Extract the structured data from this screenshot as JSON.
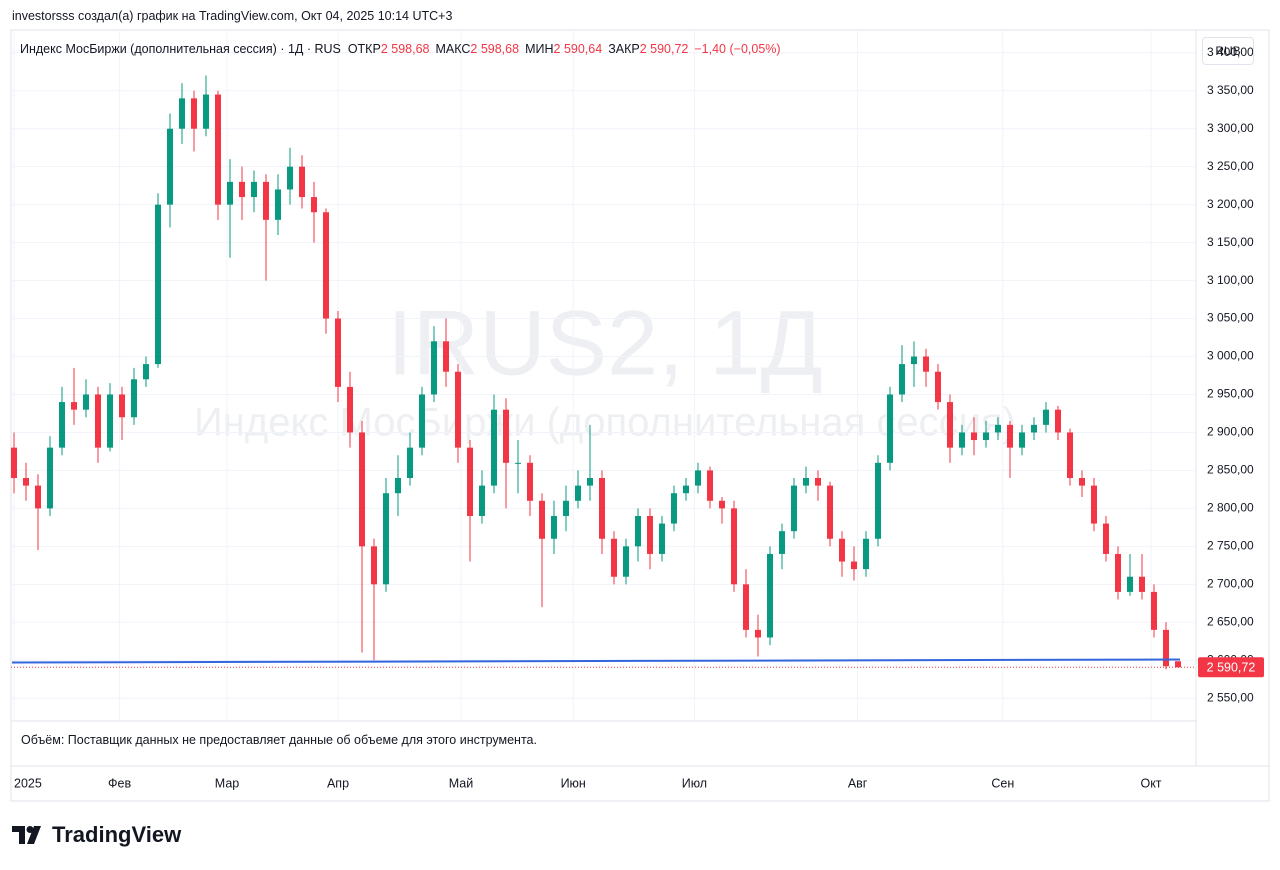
{
  "header": {
    "attribution": "investorsss создал(а) график на TradingView.com, Окт 04, 2025 10:14 UTC+3"
  },
  "legend": {
    "symbol": "Индекс МосБиржи (дополнительная сессия) · 1Д · RUS",
    "items": [
      {
        "label": "ОТКР",
        "value": "2 598,68"
      },
      {
        "label": "МАКС",
        "value": "2 598,68"
      },
      {
        "label": "МИН",
        "value": "2 590,64"
      },
      {
        "label": "ЗАКР",
        "value": "2 590,72"
      }
    ],
    "change": "−1,40 (−0,05%)"
  },
  "watermark": {
    "symbol": "IRUS2, 1Д",
    "name": "Индекс МосБиржи (дополнительная сессия)"
  },
  "currency": "RUB",
  "volume_note": "Объём: Поставщик данных не предоставляет данные об объеме для этого инструмента.",
  "logo": "TradingView",
  "chart_data": {
    "type": "candlestick",
    "up_color": "#089981",
    "down_color": "#f23645",
    "grid": true,
    "ylim": [
      2520,
      3430
    ],
    "yticks": [
      {
        "value": 3400,
        "label": "3 400,00"
      },
      {
        "value": 3350,
        "label": "3 350,00"
      },
      {
        "value": 3300,
        "label": "3 300,00"
      },
      {
        "value": 3250,
        "label": "3 250,00"
      },
      {
        "value": 3200,
        "label": "3 200,00"
      },
      {
        "value": 3150,
        "label": "3 150,00"
      },
      {
        "value": 3100,
        "label": "3 100,00"
      },
      {
        "value": 3050,
        "label": "3 050,00"
      },
      {
        "value": 3000,
        "label": "3 000,00"
      },
      {
        "value": 2950,
        "label": "2 950,00"
      },
      {
        "value": 2900,
        "label": "2 900,00"
      },
      {
        "value": 2850,
        "label": "2 850,00"
      },
      {
        "value": 2800,
        "label": "2 800,00"
      },
      {
        "value": 2750,
        "label": "2 750,00"
      },
      {
        "value": 2700,
        "label": "2 700,00"
      },
      {
        "value": 2650,
        "label": "2 650,00"
      },
      {
        "value": 2600,
        "label": "2 600,00"
      },
      {
        "value": 2550,
        "label": "2 550,00"
      }
    ],
    "xticks": [
      {
        "value": 0,
        "label": "2025"
      },
      {
        "value": 8.8,
        "label": "Фев"
      },
      {
        "value": 17.75,
        "label": "Мар"
      },
      {
        "value": 27,
        "label": "Апр"
      },
      {
        "value": 37.25,
        "label": "Май"
      },
      {
        "value": 46.6,
        "label": "Июн"
      },
      {
        "value": 56.7,
        "label": "Июл"
      },
      {
        "value": 70.3,
        "label": "Авг"
      },
      {
        "value": 82.4,
        "label": "Сен"
      },
      {
        "value": 94.75,
        "label": "Окт"
      }
    ],
    "ohlc": [
      [
        2880,
        2900,
        2820,
        2840
      ],
      [
        2840,
        2860,
        2810,
        2830
      ],
      [
        2830,
        2845,
        2745,
        2800
      ],
      [
        2800,
        2895,
        2790,
        2880
      ],
      [
        2880,
        2960,
        2870,
        2940
      ],
      [
        2940,
        2985,
        2910,
        2930
      ],
      [
        2930,
        2970,
        2920,
        2950
      ],
      [
        2950,
        2960,
        2860,
        2880
      ],
      [
        2880,
        2965,
        2875,
        2950
      ],
      [
        2950,
        2960,
        2890,
        2920
      ],
      [
        2920,
        2985,
        2910,
        2970
      ],
      [
        2970,
        3000,
        2960,
        2990
      ],
      [
        2990,
        3215,
        2985,
        3200
      ],
      [
        3200,
        3320,
        3170,
        3300
      ],
      [
        3300,
        3360,
        3280,
        3340
      ],
      [
        3340,
        3350,
        3270,
        3300
      ],
      [
        3300,
        3370,
        3290,
        3345
      ],
      [
        3345,
        3350,
        3180,
        3200
      ],
      [
        3200,
        3260,
        3130,
        3230
      ],
      [
        3230,
        3250,
        3180,
        3210
      ],
      [
        3210,
        3245,
        3190,
        3230
      ],
      [
        3230,
        3240,
        3100,
        3180
      ],
      [
        3180,
        3240,
        3160,
        3220
      ],
      [
        3220,
        3275,
        3200,
        3250
      ],
      [
        3250,
        3265,
        3195,
        3210
      ],
      [
        3210,
        3230,
        3150,
        3190
      ],
      [
        3190,
        3195,
        3030,
        3050
      ],
      [
        3050,
        3060,
        2940,
        2960
      ],
      [
        2960,
        2980,
        2880,
        2900
      ],
      [
        2900,
        2915,
        2610,
        2750
      ],
      [
        2750,
        2760,
        2600,
        2700
      ],
      [
        2700,
        2840,
        2690,
        2820
      ],
      [
        2820,
        2870,
        2790,
        2840
      ],
      [
        2840,
        2900,
        2830,
        2880
      ],
      [
        2880,
        2960,
        2870,
        2950
      ],
      [
        2950,
        3040,
        2940,
        3020
      ],
      [
        3020,
        3050,
        2960,
        2980
      ],
      [
        2980,
        2990,
        2860,
        2880
      ],
      [
        2880,
        2890,
        2730,
        2790
      ],
      [
        2790,
        2850,
        2780,
        2830
      ],
      [
        2830,
        2950,
        2820,
        2930
      ],
      [
        2930,
        2945,
        2800,
        2860
      ],
      [
        2860,
        2890,
        2820,
        2860
      ],
      [
        2860,
        2870,
        2790,
        2810
      ],
      [
        2810,
        2820,
        2670,
        2760
      ],
      [
        2760,
        2810,
        2740,
        2790
      ],
      [
        2790,
        2830,
        2770,
        2810
      ],
      [
        2810,
        2850,
        2800,
        2830
      ],
      [
        2830,
        2910,
        2810,
        2840
      ],
      [
        2840,
        2850,
        2740,
        2760
      ],
      [
        2760,
        2770,
        2700,
        2710
      ],
      [
        2710,
        2760,
        2700,
        2750
      ],
      [
        2750,
        2800,
        2730,
        2790
      ],
      [
        2790,
        2800,
        2720,
        2740
      ],
      [
        2740,
        2790,
        2730,
        2780
      ],
      [
        2780,
        2830,
        2770,
        2820
      ],
      [
        2820,
        2840,
        2810,
        2830
      ],
      [
        2830,
        2860,
        2820,
        2850
      ],
      [
        2850,
        2855,
        2800,
        2810
      ],
      [
        2810,
        2815,
        2780,
        2800
      ],
      [
        2800,
        2810,
        2690,
        2700
      ],
      [
        2700,
        2720,
        2630,
        2640
      ],
      [
        2640,
        2660,
        2605,
        2630
      ],
      [
        2630,
        2750,
        2620,
        2740
      ],
      [
        2740,
        2780,
        2720,
        2770
      ],
      [
        2770,
        2840,
        2760,
        2830
      ],
      [
        2830,
        2855,
        2820,
        2840
      ],
      [
        2840,
        2850,
        2810,
        2830
      ],
      [
        2830,
        2835,
        2750,
        2760
      ],
      [
        2760,
        2770,
        2710,
        2730
      ],
      [
        2730,
        2750,
        2705,
        2720
      ],
      [
        2720,
        2770,
        2710,
        2760
      ],
      [
        2760,
        2870,
        2750,
        2860
      ],
      [
        2860,
        2960,
        2850,
        2950
      ],
      [
        2950,
        3015,
        2940,
        2990
      ],
      [
        2990,
        3020,
        2960,
        3000
      ],
      [
        3000,
        3010,
        2960,
        2980
      ],
      [
        2980,
        2990,
        2930,
        2940
      ],
      [
        2940,
        2950,
        2860,
        2880
      ],
      [
        2880,
        2910,
        2870,
        2900
      ],
      [
        2900,
        2920,
        2870,
        2890
      ],
      [
        2890,
        2915,
        2880,
        2900
      ],
      [
        2900,
        2920,
        2890,
        2910
      ],
      [
        2910,
        2915,
        2840,
        2880
      ],
      [
        2880,
        2910,
        2870,
        2900
      ],
      [
        2900,
        2920,
        2890,
        2910
      ],
      [
        2910,
        2940,
        2900,
        2930
      ],
      [
        2930,
        2935,
        2890,
        2900
      ],
      [
        2900,
        2905,
        2830,
        2840
      ],
      [
        2840,
        2850,
        2815,
        2830
      ],
      [
        2830,
        2840,
        2770,
        2780
      ],
      [
        2780,
        2790,
        2730,
        2740
      ],
      [
        2740,
        2750,
        2680,
        2690
      ],
      [
        2690,
        2740,
        2685,
        2710
      ],
      [
        2710,
        2740,
        2680,
        2690
      ],
      [
        2690,
        2700,
        2630,
        2640
      ],
      [
        2640,
        2650,
        2588,
        2592.12
      ],
      [
        2598.68,
        2598.68,
        2590.64,
        2590.72
      ]
    ],
    "support_line": {
      "color": "#3366dd",
      "values": [
        2597,
        2601
      ]
    },
    "last_price_label": "2 590,72"
  }
}
